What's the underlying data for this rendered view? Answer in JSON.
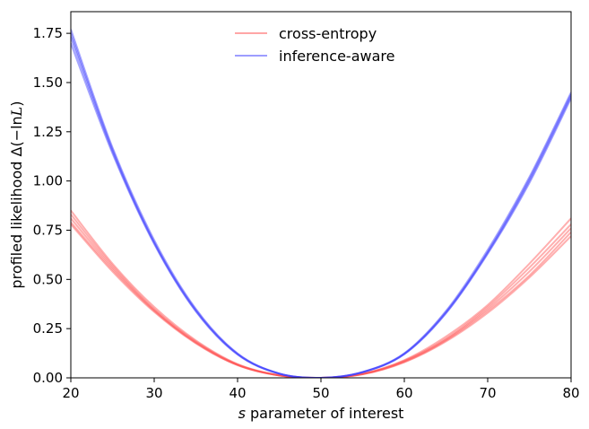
{
  "chart_data": {
    "type": "line",
    "title": "",
    "xlabel_italic": "s",
    "xlabel_rest": " parameter of interest",
    "ylabel_main": "profiled likelihood Δ(−ln",
    "ylabel_symbol": "L",
    "ylabel_close": ")",
    "xlim": [
      20,
      80
    ],
    "ylim": [
      0,
      1.86
    ],
    "x_ticks": [
      20,
      30,
      40,
      50,
      60,
      70,
      80
    ],
    "y_ticks": [
      0.0,
      0.25,
      0.5,
      0.75,
      1.0,
      1.25,
      1.5,
      1.75
    ],
    "y_tick_labels": [
      "0.00",
      "0.25",
      "0.50",
      "0.75",
      "1.00",
      "1.25",
      "1.50",
      "1.75"
    ],
    "grid": false,
    "legend_position": "top-center",
    "x": [
      20,
      25,
      30,
      35,
      40,
      45,
      50,
      55,
      60,
      65,
      70,
      75,
      80
    ],
    "series": [
      {
        "name": "cross-entropy",
        "color": "#ff4d4d",
        "opacity": 0.45,
        "curves": [
          [
            0.85,
            0.58,
            0.36,
            0.19,
            0.07,
            0.013,
            0.0,
            0.021,
            0.09,
            0.21,
            0.37,
            0.58,
            0.81
          ],
          [
            0.83,
            0.57,
            0.35,
            0.185,
            0.068,
            0.013,
            0.0,
            0.02,
            0.087,
            0.2,
            0.36,
            0.56,
            0.78
          ],
          [
            0.81,
            0.56,
            0.345,
            0.18,
            0.066,
            0.012,
            0.0,
            0.019,
            0.084,
            0.195,
            0.35,
            0.54,
            0.76
          ],
          [
            0.79,
            0.55,
            0.34,
            0.178,
            0.065,
            0.012,
            0.0,
            0.018,
            0.081,
            0.19,
            0.34,
            0.52,
            0.74
          ],
          [
            0.78,
            0.54,
            0.335,
            0.175,
            0.064,
            0.012,
            0.0,
            0.018,
            0.079,
            0.185,
            0.33,
            0.51,
            0.72
          ]
        ]
      },
      {
        "name": "inference-aware",
        "color": "#3b3bff",
        "opacity": 0.45,
        "curves": [
          [
            1.77,
            1.17,
            0.7,
            0.35,
            0.124,
            0.022,
            0.0,
            0.03,
            0.125,
            0.34,
            0.65,
            1.02,
            1.45
          ],
          [
            1.75,
            1.16,
            0.69,
            0.345,
            0.122,
            0.022,
            0.0,
            0.029,
            0.123,
            0.335,
            0.64,
            1.01,
            1.44
          ],
          [
            1.73,
            1.15,
            0.685,
            0.34,
            0.12,
            0.021,
            0.0,
            0.029,
            0.121,
            0.33,
            0.635,
            1.0,
            1.43
          ],
          [
            1.7,
            1.14,
            0.68,
            0.337,
            0.118,
            0.021,
            0.0,
            0.028,
            0.12,
            0.328,
            0.63,
            0.99,
            1.42
          ]
        ]
      }
    ]
  }
}
